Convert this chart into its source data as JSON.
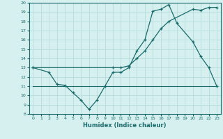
{
  "line1_x": [
    0,
    2,
    3,
    4,
    5,
    6,
    7,
    8,
    9,
    10,
    11,
    12,
    13,
    14,
    15,
    16,
    17,
    18,
    20,
    21,
    22,
    23
  ],
  "line1_y": [
    13,
    12.5,
    11.2,
    11.1,
    10.3,
    9.5,
    8.5,
    9.5,
    11.0,
    12.5,
    12.5,
    13.0,
    14.8,
    16.0,
    19.1,
    19.3,
    19.8,
    17.8,
    15.8,
    14.2,
    13.0,
    11.0
  ],
  "line2_x": [
    0,
    10,
    11,
    12,
    13,
    14,
    15,
    16,
    17,
    20,
    21,
    22,
    23
  ],
  "line2_y": [
    13,
    13.0,
    13.0,
    13.2,
    14.0,
    14.8,
    16.0,
    17.2,
    18.0,
    19.3,
    19.2,
    19.5,
    19.5
  ],
  "line3_x": [
    0,
    23
  ],
  "line3_y": [
    11,
    11
  ],
  "color": "#1a6b6b",
  "bg_color": "#d6efef",
  "grid_color": "#b0d8d8",
  "xlabel": "Humidex (Indice chaleur)",
  "xlim": [
    -0.5,
    23.5
  ],
  "ylim": [
    8,
    20
  ],
  "xticks": [
    0,
    1,
    2,
    3,
    4,
    5,
    6,
    7,
    8,
    9,
    10,
    11,
    12,
    13,
    14,
    15,
    16,
    17,
    18,
    19,
    20,
    21,
    22,
    23
  ],
  "yticks": [
    8,
    9,
    10,
    11,
    12,
    13,
    14,
    15,
    16,
    17,
    18,
    19,
    20
  ]
}
